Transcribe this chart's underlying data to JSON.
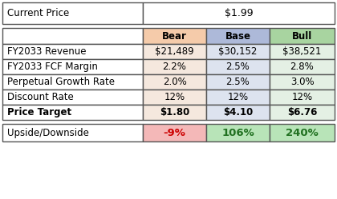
{
  "current_price_label": "Current Price",
  "current_price_value": "$1.99",
  "header_labels": [
    "",
    "Bear",
    "Base",
    "Bull"
  ],
  "header_bg_colors": [
    "#ffffff",
    "#f5cbaa",
    "#adb9d9",
    "#a8d4a0"
  ],
  "rows": [
    [
      "FY2033 Revenue",
      "$21,489",
      "$30,152",
      "$38,521"
    ],
    [
      "FY2033 FCF Margin",
      "2.2%",
      "2.5%",
      "2.8%"
    ],
    [
      "Perpetual Growth Rate",
      "2.0%",
      "2.5%",
      "3.0%"
    ],
    [
      "Discount Rate",
      "12%",
      "12%",
      "12%"
    ],
    [
      "Price Target",
      "$1.80",
      "$4.10",
      "$6.76"
    ]
  ],
  "upside_label": "Upside/Downside",
  "upside_values": [
    "-9%",
    "106%",
    "240%"
  ],
  "upside_bg_colors": [
    "#f4b8b8",
    "#b8e4b8",
    "#b8e4b8"
  ],
  "upside_text_colors": [
    "#cc0000",
    "#207020",
    "#207020"
  ],
  "data_col_bgs": [
    "#f5e8de",
    "#dde3ef",
    "#e4f0e4"
  ],
  "border_color": "#555555",
  "font_size": 8.5
}
